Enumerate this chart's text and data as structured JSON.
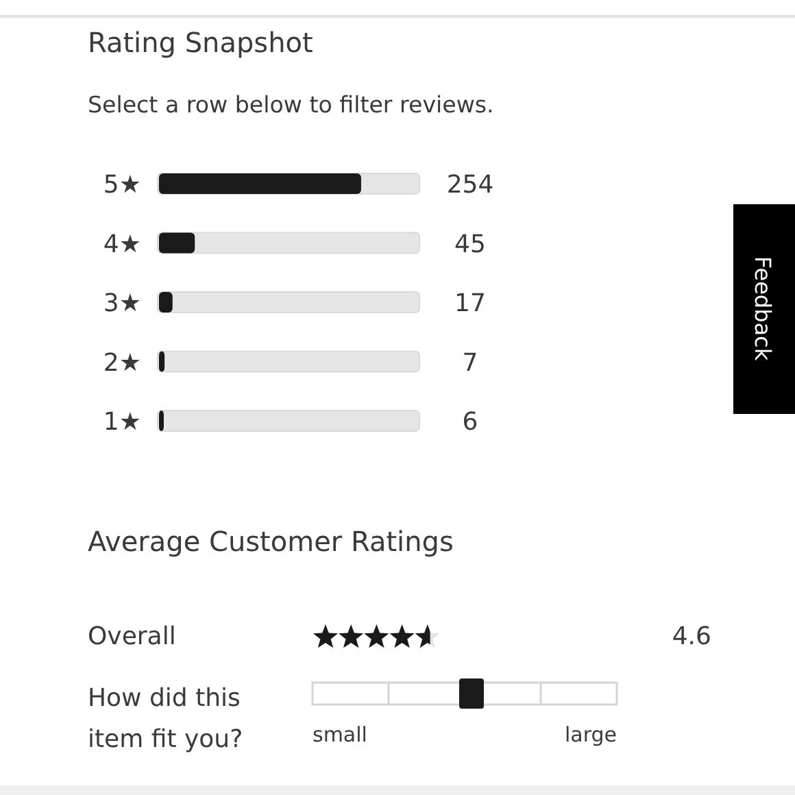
{
  "chart_data": [
    {
      "type": "bar",
      "orientation": "horizontal",
      "title": "Rating Snapshot",
      "subtitle": "Select a row below to filter reviews.",
      "categories": [
        "5★",
        "4★",
        "3★",
        "2★",
        "1★"
      ],
      "values": [
        254,
        45,
        17,
        7,
        6
      ],
      "color": "#1a1a1a",
      "data_labels": true,
      "annotations": [
        "Feedback"
      ]
    },
    {
      "type": "other",
      "title": "Average Customer Ratings",
      "categories": [
        "Overall",
        "How did this item fit you?"
      ],
      "values": [
        4.6,
        null
      ],
      "color": "#1a1a1a",
      "data_labels": true,
      "annotations": [
        "small",
        "large"
      ]
    }
  ]
}
